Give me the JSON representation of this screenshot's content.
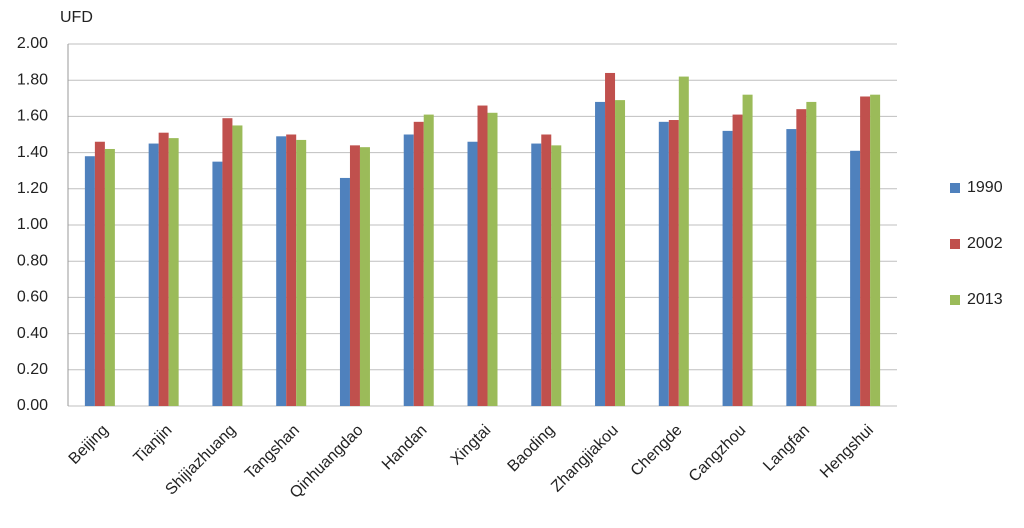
{
  "chart_data": {
    "type": "bar",
    "y_label": "UFD",
    "categories": [
      "Beijing",
      "Tianjin",
      "Shijiazhuang",
      "Tangshan",
      "Qinhuangdao",
      "Handan",
      "Xingtai",
      "Baoding",
      "Zhangjiakou",
      "Chengde",
      "Cangzhou",
      "Langfan",
      "Hengshui"
    ],
    "series": [
      {
        "name": "1990",
        "color": "#4f81bd",
        "values": [
          1.38,
          1.45,
          1.35,
          1.49,
          1.26,
          1.5,
          1.46,
          1.45,
          1.68,
          1.57,
          1.52,
          1.53,
          1.41
        ]
      },
      {
        "name": "2002",
        "color": "#c0504d",
        "values": [
          1.46,
          1.51,
          1.59,
          1.5,
          1.44,
          1.57,
          1.66,
          1.5,
          1.84,
          1.58,
          1.61,
          1.64,
          1.71
        ]
      },
      {
        "name": "2013",
        "color": "#9bbb59",
        "values": [
          1.42,
          1.48,
          1.55,
          1.47,
          1.43,
          1.61,
          1.62,
          1.44,
          1.69,
          1.82,
          1.72,
          1.68,
          1.72
        ]
      }
    ],
    "ylim": [
      0,
      2
    ],
    "yticks": [
      {
        "value": 0,
        "label": "0.00"
      },
      {
        "value": 0.2,
        "label": "0.20"
      },
      {
        "value": 0.4,
        "label": "0.40"
      },
      {
        "value": 0.6,
        "label": "0.60"
      },
      {
        "value": 0.8,
        "label": "0.80"
      },
      {
        "value": 1,
        "label": "1.00"
      },
      {
        "value": 1.2,
        "label": "1.20"
      },
      {
        "value": 1.4,
        "label": "1.40"
      },
      {
        "value": 1.6,
        "label": "1.60"
      },
      {
        "value": 1.8,
        "label": "1.80"
      },
      {
        "value": 2,
        "label": "2.00"
      }
    ],
    "grid": true,
    "legend": "right"
  }
}
